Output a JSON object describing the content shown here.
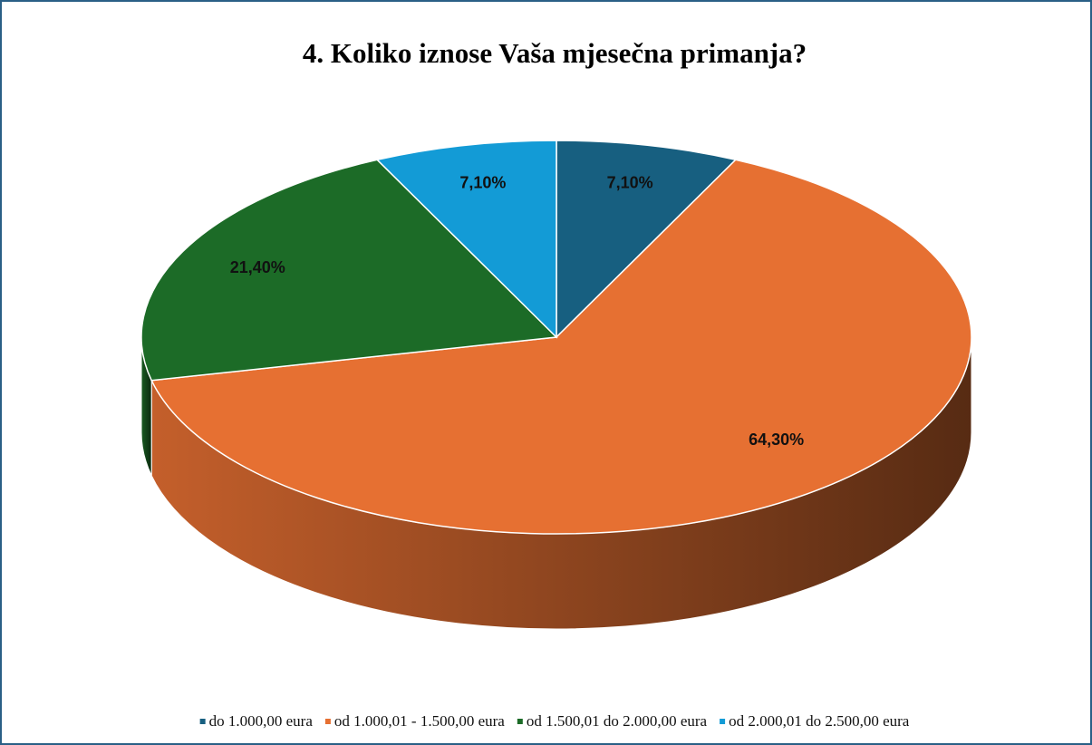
{
  "chart_data": {
    "type": "pie",
    "title": "4. Koliko iznose Vaša mjesečna primanja?",
    "categories": [
      "do 1.000,00 eura",
      "od 1.000,01 - 1.500,00 eura",
      "od 1.500,01 do 2.000,00 eura",
      "od 2.000,01 do 2.500,00 eura"
    ],
    "values": [
      7.1,
      64.3,
      21.4,
      7.1
    ],
    "value_labels": [
      "7,10%",
      "64,30%",
      "21,40%",
      "7,10%"
    ],
    "colors": [
      "#175f80",
      "#e67032",
      "#1c6b27",
      "#139bd6"
    ],
    "legend": "bottom"
  }
}
